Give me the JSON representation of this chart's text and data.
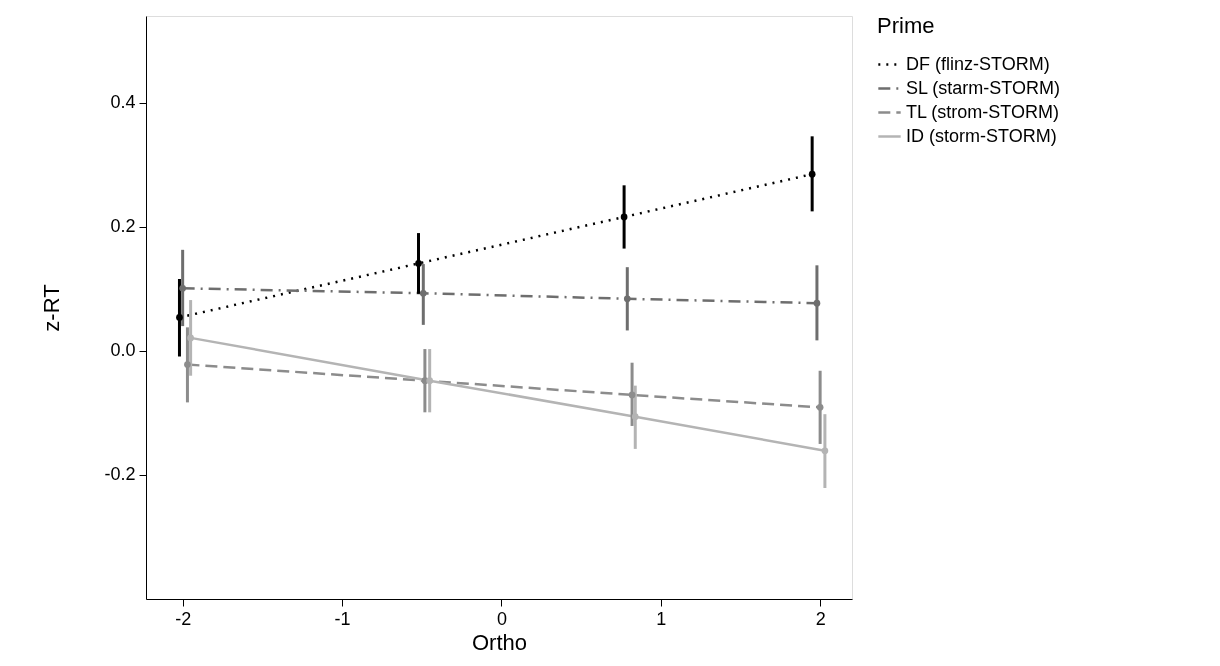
{
  "chart_data": {
    "type": "line",
    "xlabel": "Ortho",
    "ylabel": "z-RT",
    "legend_title": "Prime",
    "xlim": [
      -2.23,
      2.2
    ],
    "ylim": [
      -0.4,
      0.54
    ],
    "xticks": [
      {
        "value": -2,
        "label": "-2"
      },
      {
        "value": -1,
        "label": "-1"
      },
      0,
      1,
      2
    ],
    "yticks": [
      {
        "value": -0.2,
        "label": "-0.2"
      },
      {
        "value": 0,
        "label": "0.0"
      },
      0.2,
      0.4
    ],
    "grid": false,
    "legend": "right",
    "marker": "circle",
    "series": [
      {
        "name": "DF (flinz-STORM)",
        "color": "#000000",
        "line_style": "dotted",
        "x": [
          -2.02,
          -0.52,
          0.77,
          1.95
        ],
        "values": [
          0.054,
          0.141,
          0.216,
          0.285
        ],
        "errors": [
          [
            -0.009,
            0.116
          ],
          [
            0.092,
            0.19
          ],
          [
            0.165,
            0.267
          ],
          [
            0.225,
            0.346
          ]
        ]
      },
      {
        "name": "SL (starm-STORM)",
        "color": "#6e6e6e",
        "line_style": "dashdot",
        "x": [
          -2.0,
          -0.49,
          0.79,
          1.98
        ],
        "values": [
          0.101,
          0.093,
          0.084,
          0.077
        ],
        "errors": [
          [
            0.04,
            0.163
          ],
          [
            0.042,
            0.14
          ],
          [
            0.033,
            0.135
          ],
          [
            0.017,
            0.138
          ]
        ]
      },
      {
        "name": "TL (strom-STORM)",
        "color": "#8c8c8c",
        "line_style": "dashed",
        "x": [
          -1.97,
          -0.48,
          0.82,
          2.0
        ],
        "values": [
          -0.022,
          -0.048,
          -0.071,
          -0.091
        ],
        "errors": [
          [
            -0.083,
            0.038
          ],
          [
            -0.099,
            0.003
          ],
          [
            -0.121,
            -0.019
          ],
          [
            -0.15,
            -0.032
          ]
        ]
      },
      {
        "name": "ID (storm-STORM)",
        "color": "#b4b4b4",
        "line_style": "solid",
        "x": [
          -1.95,
          -0.45,
          0.84,
          2.03
        ],
        "values": [
          0.021,
          -0.048,
          -0.106,
          -0.161
        ],
        "errors": [
          [
            -0.04,
            0.082
          ],
          [
            -0.099,
            0.003
          ],
          [
            -0.158,
            -0.056
          ],
          [
            -0.221,
            -0.102
          ]
        ]
      }
    ]
  }
}
